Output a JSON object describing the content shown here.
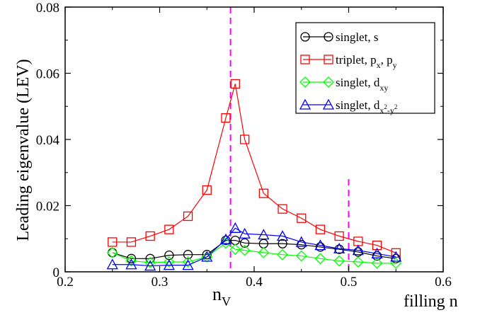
{
  "chart_data": {
    "type": "line",
    "title": "",
    "xlabel": "filling n",
    "ylabel": "Leading eigenvalue (LEV)",
    "xlim": [
      0.2,
      0.6
    ],
    "ylim": [
      0,
      0.08
    ],
    "x_ticks": [
      "0.2",
      "0.3",
      "0.4",
      "0.5",
      "0.6"
    ],
    "y_ticks": [
      "0",
      "0.02",
      "0.04",
      "0.06",
      "0.08"
    ],
    "x_tick_values": [
      0.2,
      0.3,
      0.4,
      0.5,
      0.6
    ],
    "y_tick_values": [
      0,
      0.02,
      0.04,
      0.06,
      0.08
    ],
    "grid": false,
    "legend_position": "top-right",
    "annotation_nv": {
      "label": "n",
      "sub": "V",
      "x": 0.375
    },
    "vlines": [
      {
        "x": 0.375,
        "color": "#ff00ff",
        "style": "dashed",
        "ymax": 0.08
      },
      {
        "x": 0.5,
        "color": "#ff00ff",
        "style": "dashed",
        "ymax": 0.028
      }
    ],
    "series": [
      {
        "name": "singlet, s",
        "name_main": "singlet, s",
        "name_parts": [],
        "color": "#000000",
        "marker": "circle",
        "x": [
          0.25,
          0.27,
          0.29,
          0.31,
          0.33,
          0.35,
          0.37,
          0.38,
          0.39,
          0.41,
          0.43,
          0.45,
          0.47,
          0.49,
          0.51,
          0.53,
          0.55
        ],
        "y": [
          0.0058,
          0.004,
          0.004,
          0.005,
          0.0052,
          0.0052,
          0.0095,
          0.0095,
          0.0087,
          0.0085,
          0.0085,
          0.0082,
          0.0075,
          0.0068,
          0.006,
          0.0048,
          0.004
        ]
      },
      {
        "name": "triplet, px, py",
        "name_main": "triplet, p",
        "name_parts": [
          {
            "text": "x",
            "shift": "sub"
          },
          {
            "text": ", p",
            "shift": "none"
          },
          {
            "text": "y",
            "shift": "sub"
          }
        ],
        "color": "#ff0000",
        "marker": "square",
        "x": [
          0.25,
          0.27,
          0.29,
          0.31,
          0.33,
          0.35,
          0.37,
          0.38,
          0.39,
          0.41,
          0.43,
          0.45,
          0.47,
          0.49,
          0.51,
          0.53,
          0.55
        ],
        "y": [
          0.009,
          0.009,
          0.0108,
          0.0128,
          0.0168,
          0.0247,
          0.0465,
          0.0568,
          0.04,
          0.0237,
          0.019,
          0.0162,
          0.0128,
          0.0108,
          0.0092,
          0.008,
          0.0057
        ]
      },
      {
        "name": "singlet, dxy",
        "name_main": "singlet, d",
        "name_parts": [
          {
            "text": "xy",
            "shift": "sub"
          }
        ],
        "color": "#00ff00",
        "marker": "diamond",
        "x": [
          0.25,
          0.27,
          0.29,
          0.31,
          0.33,
          0.35,
          0.37,
          0.38,
          0.39,
          0.41,
          0.43,
          0.45,
          0.47,
          0.49,
          0.51,
          0.53,
          0.55
        ],
        "y": [
          0.0058,
          0.0033,
          0.0028,
          0.003,
          0.003,
          0.0045,
          0.0087,
          0.0068,
          0.0065,
          0.0058,
          0.0052,
          0.0048,
          0.004,
          0.0033,
          0.003,
          0.0026,
          0.0026
        ]
      },
      {
        "name": "singlet, dx2-y2",
        "name_main": "singlet, d",
        "name_parts": [
          {
            "text": "x",
            "shift": "sub"
          },
          {
            "text": "2",
            "shift": "subsup"
          },
          {
            "text": "-y",
            "shift": "sub"
          },
          {
            "text": "2",
            "shift": "subsup"
          }
        ],
        "color": "#0000ff",
        "marker": "triangle",
        "x": [
          0.25,
          0.27,
          0.29,
          0.31,
          0.33,
          0.35,
          0.37,
          0.38,
          0.39,
          0.41,
          0.43,
          0.45,
          0.47,
          0.49,
          0.51,
          0.53,
          0.55
        ],
        "y": [
          0.0022,
          0.0022,
          0.0018,
          0.002,
          0.002,
          0.0045,
          0.0098,
          0.0132,
          0.0115,
          0.0112,
          0.0108,
          0.009,
          0.008,
          0.007,
          0.0065,
          0.0055,
          0.0045
        ]
      }
    ]
  }
}
